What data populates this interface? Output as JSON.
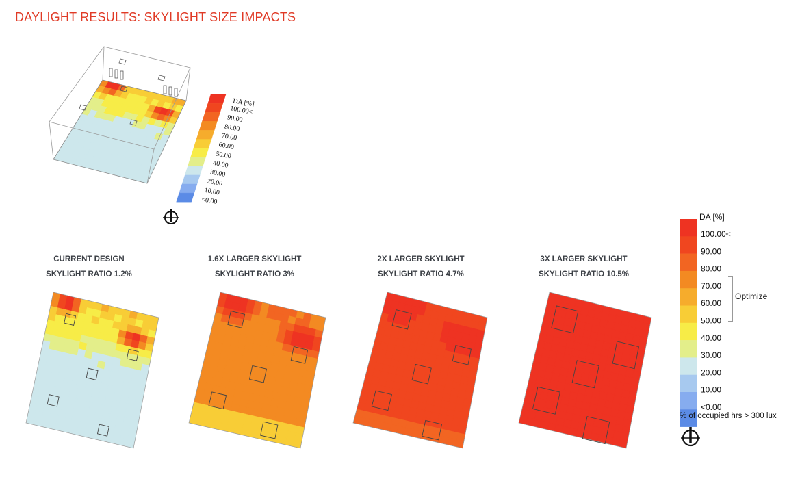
{
  "title": "DAYLIGHT RESULTS: SKYLIGHT SIZE IMPACTS",
  "panels": [
    {
      "line1": "CURRENT DESIGN",
      "line2": "SKYLIGHT RATIO 1.2%",
      "scenario": 0
    },
    {
      "line1": "1.6X LARGER SKYLIGHT",
      "line2": "SKYLIGHT RATIO 3%",
      "scenario": 1
    },
    {
      "line1": "2X LARGER SKYLIGHT",
      "line2": "SKYLIGHT RATIO 4.7%",
      "scenario": 2
    },
    {
      "line1": "3X LARGER SKYLIGHT",
      "line2": "SKYLIGHT RATIO 10.5%",
      "scenario": 3
    }
  ],
  "legend": {
    "title": "DA [%]",
    "labels": [
      "100.00<",
      "90.00",
      "80.00",
      "70.00",
      "60.00",
      "50.00",
      "40.00",
      "30.00",
      "20.00",
      "10.00",
      "<0.00"
    ],
    "colors": [
      "#ee3322",
      "#f0461f",
      "#f26522",
      "#f38a22",
      "#f6ac2c",
      "#f8cd36",
      "#f7ec47",
      "#e3ee8a",
      "#cde7ec",
      "#a7c9ef",
      "#86acef",
      "#5b8be6"
    ],
    "optimize_label": "Optimize",
    "unit_note": "% of occupied hrs > 300 lux"
  },
  "small_legend": {
    "title": "DA [%]",
    "labels": [
      "100.00<",
      "90.00",
      "80.00",
      "70.00",
      "60.00",
      "50.00",
      "40.00",
      "30.00",
      "20.00",
      "10.00",
      "<0.00"
    ]
  },
  "icons": {
    "north_arrow": "north-arrow-icon"
  }
}
